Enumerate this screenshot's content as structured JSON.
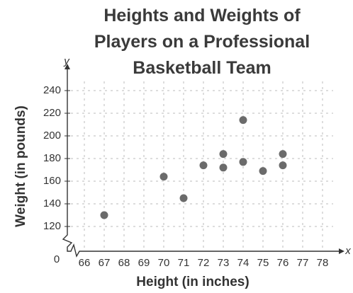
{
  "chart_data": {
    "type": "scatter",
    "title": "Heights and Weights of Players on a Professional Basketball Team",
    "x_label": "Height (in inches)",
    "y_label": "Weight (in pounds)",
    "x_axis_symbol": "x",
    "y_axis_symbol": "y",
    "origin_label": 0,
    "x": [
      67,
      70,
      71,
      72,
      73,
      73,
      74,
      74,
      75,
      76,
      76
    ],
    "values": [
      130,
      164,
      145,
      174,
      184,
      172,
      214,
      177,
      169,
      184,
      174
    ],
    "color": "#6b6b6b",
    "xlim": [
      65.5,
      79
    ],
    "ylim": [
      110,
      255
    ],
    "xticks": [
      66,
      67,
      68,
      69,
      70,
      71,
      72,
      73,
      74,
      75,
      76,
      77,
      78
    ],
    "yticks": [
      120,
      140,
      160,
      180,
      200,
      220,
      240
    ],
    "grid": true
  }
}
